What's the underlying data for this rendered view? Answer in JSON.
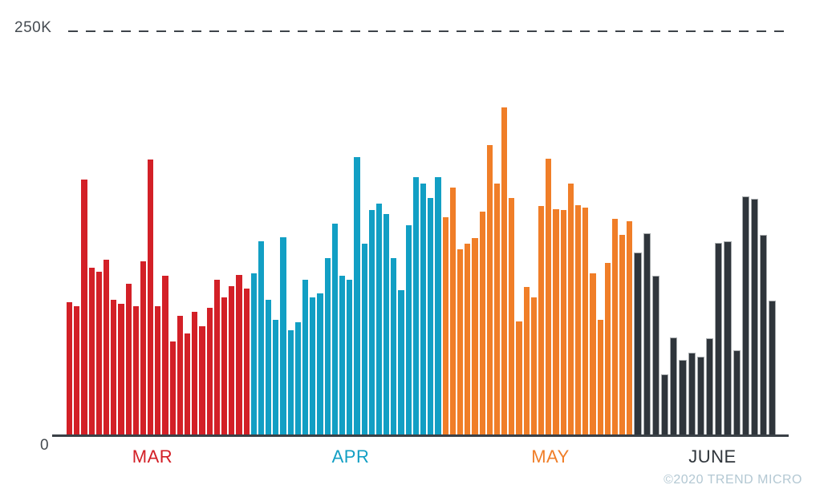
{
  "y_axis": {
    "top_label": "250K",
    "bottom_label": "0"
  },
  "watermark": "©2020 TREND MICRO",
  "colors": {
    "background": "#ffffff",
    "axis": "#3a4046",
    "gridline": "#3e444a",
    "tick_text": "#454b51",
    "watermark_text": "#b3c8d3",
    "mar_red": "#d32027",
    "apr_blue": "#129fc4",
    "may_orange": "#f07e28",
    "june_charcoal": "#2f353b",
    "june_bar_edge": "#a7abad"
  },
  "chart_data": {
    "type": "bar",
    "title": "",
    "xlabel": "",
    "ylabel": "",
    "value_unit": "thousands (K)",
    "ylim": [
      0,
      250
    ],
    "y_tick_labels": [
      "0",
      "250K"
    ],
    "gridlines": [
      {
        "value": 250,
        "label": "250K",
        "style": "dashed"
      }
    ],
    "legend_position": "none",
    "grid": false,
    "categories": [
      "MAR",
      "APR",
      "MAY",
      "JUNE"
    ],
    "series": [
      {
        "name": "MAR",
        "color": "#d32027",
        "values": [
          82,
          79.5,
          158,
          103.5,
          101,
          108.5,
          83.5,
          81,
          93.5,
          79.5,
          107.5,
          170.5,
          79.5,
          98.5,
          57.5,
          73.5,
          62.5,
          76,
          67,
          78.5,
          96,
          85,
          92,
          99,
          90.5
        ]
      },
      {
        "name": "APR",
        "color": "#129fc4",
        "values": [
          100,
          120,
          83.5,
          71,
          122.5,
          64.5,
          69.5,
          96,
          85,
          87.5,
          109.5,
          130.5,
          98.5,
          96,
          172,
          118.5,
          139,
          143,
          136.5,
          109.5,
          89.5,
          129.5,
          159.5,
          155.5,
          146.5,
          159.5
        ]
      },
      {
        "name": "MAY",
        "color": "#f07e28",
        "values": [
          134.5,
          153,
          115,
          118.5,
          122,
          138,
          179.5,
          155.5,
          203,
          146.5,
          70,
          91.5,
          85,
          141.5,
          171,
          139.5,
          139,
          155.5,
          142,
          140.5,
          100,
          71,
          106.5,
          133.5,
          124,
          132
        ]
      },
      {
        "name": "JUNE",
        "color": "#2f353b",
        "edge": "#a7abad",
        "values": [
          113,
          125,
          98.5,
          37.5,
          60,
          46,
          50.5,
          48,
          59.5,
          119,
          120,
          52,
          147.5,
          146,
          124,
          83
        ]
      }
    ]
  }
}
